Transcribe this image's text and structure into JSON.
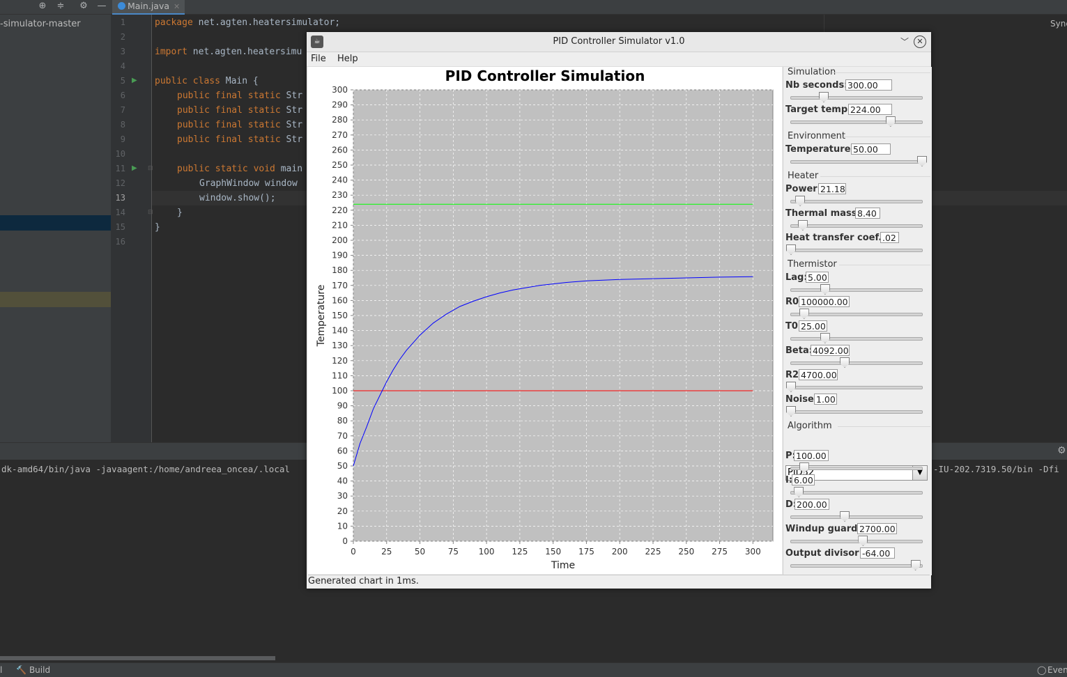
{
  "ide": {
    "project_title": "-simulator-master",
    "tab_label": "Main.java",
    "sync_label": "Sync",
    "line_numbers": [
      "1",
      "2",
      "3",
      "4",
      "5",
      "6",
      "7",
      "8",
      "9",
      "10",
      "11",
      "12",
      "13",
      "14",
      "15",
      "16"
    ],
    "code": {
      "l1_kw": "package",
      "l1_rest": " net.agten.heatersimulator;",
      "l3_kw": "import",
      "l3_rest": " net.agten.heatersimu",
      "l5_kw": "public class",
      "l5_rest": " Main {",
      "l6_kw": "public final static",
      "l6_rest": " Str",
      "l7_kw": "public final static",
      "l7_rest": " Str",
      "l8_kw": "public final static",
      "l8_rest": " Str",
      "l9_kw": "public final static",
      "l9_rest": " Str",
      "l11_kw": "public static void",
      "l11_rest": " main",
      "l12": "GraphWindow window",
      "l13": "window.show();",
      "l14": "}",
      "l15": "}"
    },
    "console_left": "dk-amd64/bin/java -javaagent:/home/andreea_oncea/.local",
    "console_right": "-IU-202.7319.50/bin -Dfi",
    "status_left": "l",
    "status_build": "Build",
    "status_event": "Even"
  },
  "window": {
    "title": "PID Controller Simulator v1.0",
    "menu": [
      "File",
      "Help"
    ],
    "status": "Generated chart in 1ms."
  },
  "groups": {
    "simulation": "Simulation",
    "environment": "Environment",
    "heater": "Heater",
    "thermistor": "Thermistor",
    "algorithm": "Algorithm"
  },
  "controls": {
    "nb_seconds": {
      "label": "Nb seconds:",
      "value": "300.00",
      "slider": 0.25
    },
    "target_temp": {
      "label": "Target temp:",
      "value": "224.00",
      "slider": 0.76
    },
    "temperature": {
      "label": "Temperature:",
      "value": "50.00",
      "slider": 1.0
    },
    "power": {
      "label": "Power:",
      "value": "21.18",
      "slider": 0.07
    },
    "thermal_mass": {
      "label": "Thermal mass:",
      "value": "8.40",
      "slider": 0.09
    },
    "heat_transfer": {
      "label": "Heat transfer coef.:",
      "value": ".02",
      "slider": 0.0
    },
    "lag": {
      "label": "Lag:",
      "value": "5.00",
      "slider": 0.26
    },
    "r0": {
      "label": "R0:",
      "value": "100000.00",
      "slider": 0.1
    },
    "t0": {
      "label": "T0:",
      "value": "25.00",
      "slider": 0.26
    },
    "beta": {
      "label": "Beta:",
      "value": "4092.00",
      "slider": 0.41
    },
    "r2": {
      "label": "R2:",
      "value": "4700.00",
      "slider": 0.0
    },
    "noise": {
      "label": "Noise:",
      "value": "1.00",
      "slider": 0.0
    },
    "algorithm": {
      "selected": "PID32"
    },
    "p": {
      "label": "P:",
      "value": "100.00",
      "slider": 0.1
    },
    "i": {
      "label": "I:",
      "value": "6.00",
      "slider": 0.06
    },
    "d": {
      "label": "D:",
      "value": "200.00",
      "slider": 0.41
    },
    "windup": {
      "label": "Windup guard:",
      "value": "2700.00",
      "slider": 0.55
    },
    "output_divisor": {
      "label": "Output divisor:",
      "value": "-64.00",
      "slider": 0.95
    }
  },
  "chart_data": {
    "type": "line",
    "title": "PID Controller Simulation",
    "xlabel": "Time",
    "ylabel": "Temperature",
    "xlim": [
      0,
      315
    ],
    "ylim": [
      0,
      300
    ],
    "xticks": [
      0,
      25,
      50,
      75,
      100,
      125,
      150,
      175,
      200,
      225,
      250,
      275,
      300
    ],
    "yticks": [
      0,
      10,
      20,
      30,
      40,
      50,
      60,
      70,
      80,
      90,
      100,
      110,
      120,
      130,
      140,
      150,
      160,
      170,
      180,
      190,
      200,
      210,
      220,
      230,
      240,
      250,
      260,
      270,
      280,
      290,
      300
    ],
    "grid": true,
    "series": [
      {
        "color": "#ff0000",
        "x": [
          0,
          300
        ],
        "y": [
          100,
          100
        ]
      },
      {
        "color": "#00ff00",
        "x": [
          0,
          300
        ],
        "y": [
          224,
          224
        ]
      },
      {
        "color": "#0000ff",
        "x": [
          0,
          5,
          10,
          15,
          20,
          25,
          30,
          35,
          40,
          45,
          50,
          60,
          70,
          80,
          90,
          100,
          110,
          120,
          130,
          140,
          150,
          160,
          175,
          200,
          225,
          250,
          275,
          300
        ],
        "y": [
          50,
          65,
          76,
          88,
          97,
          106,
          114,
          121,
          127,
          132,
          137,
          145,
          151,
          156,
          159.5,
          162.5,
          165,
          167,
          168.5,
          170,
          171,
          172,
          173,
          174,
          174.5,
          175,
          175.5,
          175.8
        ]
      }
    ]
  }
}
